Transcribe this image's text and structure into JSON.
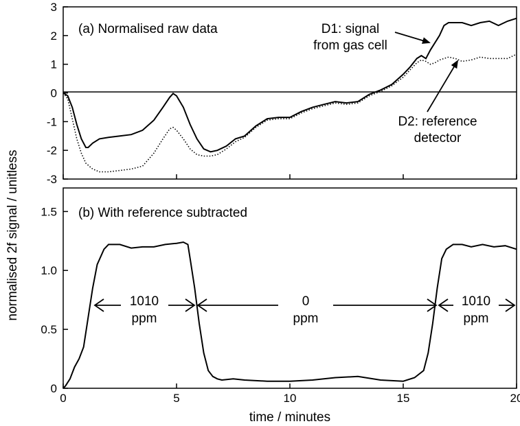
{
  "chart_data": [
    {
      "type": "line",
      "title": "(a) Normalised raw data",
      "xlim": [
        0,
        20
      ],
      "ylim": [
        -3,
        3
      ],
      "yticks": [
        "-3",
        "-2",
        "-1",
        "0",
        "1",
        "2",
        "3"
      ],
      "zero_line": true,
      "series": [
        {
          "name": "D1: signal from gas cell",
          "style": "solid",
          "x": [
            0,
            0.2,
            0.4,
            0.6,
            0.8,
            1.0,
            1.1,
            1.3,
            1.6,
            2.0,
            2.5,
            3.0,
            3.5,
            4.0,
            4.4,
            4.7,
            4.85,
            5.0,
            5.3,
            5.6,
            5.9,
            6.2,
            6.5,
            6.8,
            7.2,
            7.6,
            8.0,
            8.5,
            9.0,
            9.5,
            10.0,
            10.5,
            11.0,
            11.5,
            12.0,
            12.5,
            13.0,
            13.5,
            14.0,
            14.5,
            15.0,
            15.3,
            15.6,
            15.8,
            16.0,
            16.2,
            16.4,
            16.6,
            16.8,
            17.0,
            17.3,
            17.6,
            18.0,
            18.4,
            18.8,
            19.2,
            19.6,
            20.0
          ],
          "y": [
            0,
            -0.1,
            -0.5,
            -1.1,
            -1.6,
            -1.9,
            -1.9,
            -1.75,
            -1.6,
            -1.55,
            -1.5,
            -1.45,
            -1.3,
            -0.95,
            -0.5,
            -0.15,
            -0.02,
            -0.1,
            -0.5,
            -1.1,
            -1.6,
            -1.95,
            -2.05,
            -2.0,
            -1.85,
            -1.6,
            -1.5,
            -1.15,
            -0.9,
            -0.85,
            -0.85,
            -0.65,
            -0.5,
            -0.4,
            -0.3,
            -0.35,
            -0.3,
            -0.05,
            0.1,
            0.3,
            0.65,
            0.9,
            1.2,
            1.3,
            1.2,
            1.5,
            1.75,
            2.0,
            2.35,
            2.45,
            2.45,
            2.45,
            2.35,
            2.45,
            2.5,
            2.35,
            2.5,
            2.6
          ]
        },
        {
          "name": "D2: reference detector",
          "style": "dotted",
          "x": [
            0,
            0.2,
            0.4,
            0.6,
            0.8,
            1.0,
            1.3,
            1.6,
            2.0,
            2.5,
            3.0,
            3.5,
            4.0,
            4.4,
            4.7,
            4.85,
            5.0,
            5.3,
            5.6,
            5.9,
            6.2,
            6.5,
            6.8,
            7.2,
            7.6,
            8.0,
            8.5,
            9.0,
            9.5,
            10.0,
            10.5,
            11.0,
            11.5,
            12.0,
            12.5,
            13.0,
            13.5,
            14.0,
            14.5,
            15.0,
            15.3,
            15.6,
            15.8,
            16.0,
            16.2,
            16.4,
            16.6,
            16.8,
            17.0,
            17.3,
            17.6,
            18.0,
            18.4,
            18.8,
            19.2,
            19.6,
            20.0
          ],
          "y": [
            0,
            -0.2,
            -0.9,
            -1.6,
            -2.1,
            -2.45,
            -2.65,
            -2.75,
            -2.75,
            -2.7,
            -2.65,
            -2.55,
            -2.1,
            -1.6,
            -1.25,
            -1.2,
            -1.3,
            -1.6,
            -1.95,
            -2.15,
            -2.2,
            -2.2,
            -2.15,
            -1.95,
            -1.7,
            -1.55,
            -1.2,
            -0.95,
            -0.9,
            -0.9,
            -0.7,
            -0.55,
            -0.45,
            -0.35,
            -0.4,
            -0.35,
            -0.1,
            0.05,
            0.25,
            0.55,
            0.8,
            1.05,
            1.15,
            1.1,
            1.0,
            1.05,
            1.15,
            1.2,
            1.25,
            1.2,
            1.1,
            1.15,
            1.25,
            1.2,
            1.2,
            1.2,
            1.35
          ]
        }
      ],
      "annotations": {
        "d1_line1": "D1: signal",
        "d1_line2": "from gas cell",
        "d2_line1": "D2: reference",
        "d2_line2": "detector"
      }
    },
    {
      "type": "line",
      "title": "(b) With reference subtracted",
      "xlabel": "time / minutes",
      "xlim": [
        0,
        20
      ],
      "ylim": [
        0,
        1.7
      ],
      "xticks": [
        "0",
        "5",
        "10",
        "15",
        "20"
      ],
      "yticks": [
        "0",
        "0.5",
        "1.0",
        "1.5"
      ],
      "series": [
        {
          "style": "solid",
          "x": [
            0,
            0.1,
            0.3,
            0.5,
            0.7,
            0.9,
            1.1,
            1.3,
            1.5,
            1.8,
            2.0,
            2.5,
            3.0,
            3.5,
            4.0,
            4.5,
            5.0,
            5.3,
            5.5,
            5.6,
            5.8,
            6.0,
            6.2,
            6.4,
            6.6,
            6.8,
            7.0,
            7.5,
            8.0,
            9.0,
            10.0,
            11.0,
            12.0,
            13.0,
            14.0,
            15.0,
            15.5,
            15.9,
            16.1,
            16.3,
            16.5,
            16.7,
            16.9,
            17.2,
            17.6,
            18.0,
            18.5,
            19.0,
            19.5,
            20.0
          ],
          "y": [
            0,
            0.02,
            0.08,
            0.18,
            0.25,
            0.35,
            0.6,
            0.85,
            1.05,
            1.18,
            1.22,
            1.22,
            1.19,
            1.2,
            1.2,
            1.22,
            1.23,
            1.24,
            1.22,
            1.1,
            0.85,
            0.55,
            0.3,
            0.15,
            0.1,
            0.08,
            0.07,
            0.08,
            0.07,
            0.06,
            0.06,
            0.07,
            0.09,
            0.1,
            0.07,
            0.06,
            0.09,
            0.15,
            0.3,
            0.55,
            0.85,
            1.1,
            1.18,
            1.22,
            1.22,
            1.2,
            1.22,
            1.2,
            1.21,
            1.18
          ]
        }
      ],
      "annotations": {
        "region1_top": "1010",
        "region1_bottom": "ppm",
        "region2_top": "0",
        "region2_bottom": "ppm",
        "region3_top": "1010",
        "region3_bottom": "ppm"
      }
    }
  ],
  "ylabel": "normalised 2f signal / unitless"
}
